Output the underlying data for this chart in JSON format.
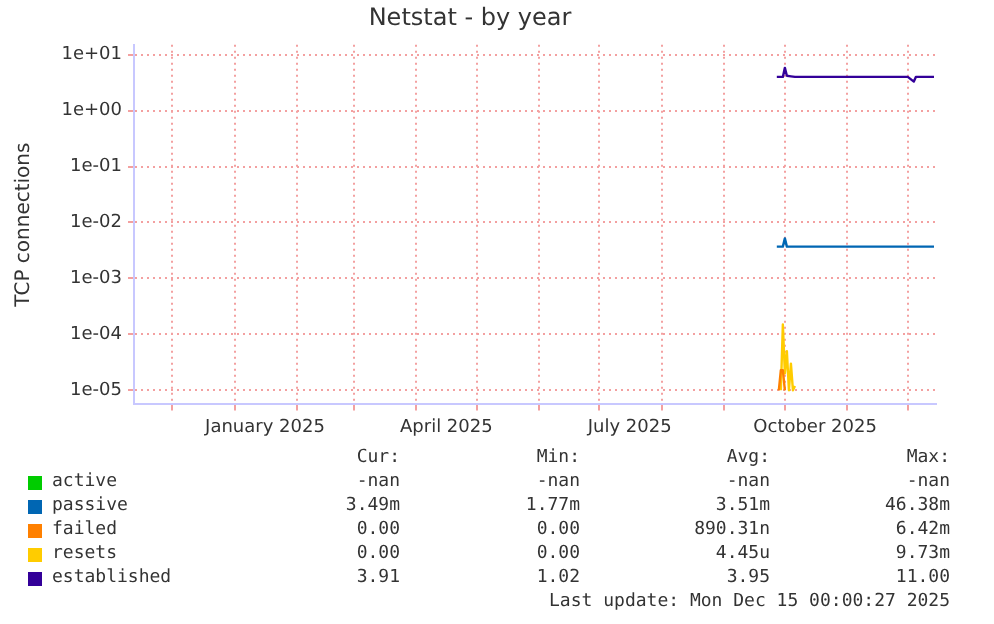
{
  "chart_data": {
    "type": "line",
    "title": "Netstat - by year",
    "ylabel": "TCP connections",
    "log": "y",
    "grid": true,
    "legend": "bottom",
    "marker": "none",
    "xlim": [
      "2024-11-12",
      "2025-12-15"
    ],
    "xticks": [
      {
        "value": "2024-12-01",
        "label": null
      },
      {
        "value": "2025-01-01",
        "label": null
      },
      {
        "value": "2025-01-16",
        "label": "January 2025"
      },
      {
        "value": "2025-02-01",
        "label": null
      },
      {
        "value": "2025-03-01",
        "label": null
      },
      {
        "value": "2025-04-01",
        "label": null
      },
      {
        "value": "2025-04-16",
        "label": "April 2025"
      },
      {
        "value": "2025-05-01",
        "label": null
      },
      {
        "value": "2025-06-01",
        "label": null
      },
      {
        "value": "2025-07-01",
        "label": null
      },
      {
        "value": "2025-07-16",
        "label": "July 2025"
      },
      {
        "value": "2025-08-01",
        "label": null
      },
      {
        "value": "2025-09-01",
        "label": null
      },
      {
        "value": "2025-10-01",
        "label": null
      },
      {
        "value": "2025-10-16",
        "label": "October 2025"
      },
      {
        "value": "2025-11-01",
        "label": null
      },
      {
        "value": "2025-12-01",
        "label": null
      }
    ],
    "ylim": [
      5.6e-06,
      15
    ],
    "yticks": [
      {
        "value": 1e-05,
        "label": "1e-05"
      },
      {
        "value": 0.0001,
        "label": "1e-04"
      },
      {
        "value": 0.001,
        "label": "1e-03"
      },
      {
        "value": 0.01,
        "label": "1e-02"
      },
      {
        "value": 0.1,
        "label": "1e-01"
      },
      {
        "value": 1,
        "label": "1e+00"
      },
      {
        "value": 10,
        "label": "1e+01"
      }
    ],
    "series": [
      {
        "name": "active",
        "color": "#00cc00"
      },
      {
        "name": "passive",
        "color": "#0066b3",
        "x": [
          "2025-09-27",
          "2025-09-30",
          "2025-10-01",
          "2025-10-02",
          "2025-11-01",
          "2025-12-14"
        ],
        "values": [
          0.0037,
          0.0037,
          0.0052,
          0.0037,
          0.0037,
          0.0037
        ]
      },
      {
        "name": "failed",
        "color": "#ff8000",
        "x": [
          "2025-09-28",
          "2025-09-29",
          "2025-09-30",
          "2025-10-01"
        ],
        "values": [
          1e-05,
          2.3e-05,
          2.3e-05,
          1e-05
        ]
      },
      {
        "name": "resets",
        "color": "#ffcc00",
        "x": [
          "2025-09-29",
          "2025-09-30",
          "2025-10-01",
          "2025-10-02",
          "2025-10-03",
          "2025-10-04",
          "2025-10-05",
          "2025-10-06"
        ],
        "values": [
          1e-05,
          0.00015,
          2e-05,
          5e-05,
          1e-05,
          3e-05,
          1e-05,
          1.2e-05
        ]
      },
      {
        "name": "established",
        "color": "#330099",
        "x": [
          "2025-09-27",
          "2025-09-30",
          "2025-10-01",
          "2025-10-02",
          "2025-10-04",
          "2025-10-06",
          "2025-11-01",
          "2025-12-01",
          "2025-12-04",
          "2025-12-05",
          "2025-12-14"
        ],
        "values": [
          4.0,
          4.0,
          5.8,
          4.2,
          4.1,
          4.0,
          4.0,
          4.0,
          3.3,
          4.0,
          4.0
        ]
      }
    ],
    "annotations": [
      "Cur:",
      "Min:",
      "Avg:",
      "Max:",
      "-nan",
      "-nan",
      "-nan",
      "-nan",
      "3.49m",
      "1.77m",
      "3.51m",
      "46.38m",
      "0.00",
      "0.00",
      "890.31n",
      "6.42m",
      "0.00",
      "0.00",
      "4.45u",
      "9.73m",
      "3.91",
      "1.02",
      "3.95",
      "11.00",
      "Last update: Mon Dec 15 00:00:27 2025"
    ]
  }
}
